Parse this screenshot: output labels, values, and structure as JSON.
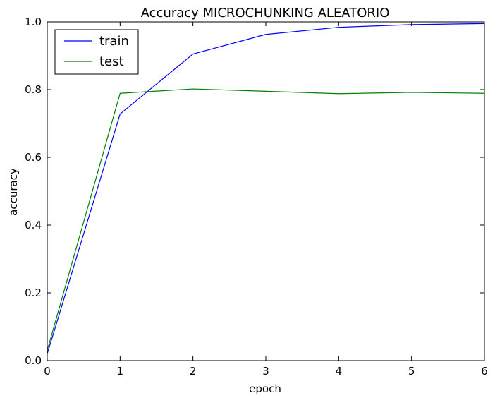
{
  "chart_data": {
    "type": "line",
    "title": "Accuracy MICROCHUNKING ALEATORIO",
    "xlabel": "epoch",
    "ylabel": "accuracy",
    "xlim": [
      0,
      6
    ],
    "ylim": [
      0.0,
      1.0
    ],
    "x_ticks": [
      "0",
      "1",
      "2",
      "3",
      "4",
      "5",
      "6"
    ],
    "y_ticks": [
      "0.0",
      "0.2",
      "0.4",
      "0.6",
      "0.8",
      "1.0"
    ],
    "grid": false,
    "legend_position": "top-left",
    "x": [
      0,
      1,
      2,
      3,
      4,
      5,
      6
    ],
    "series": [
      {
        "name": "train",
        "color": "#0000ff",
        "values": [
          0.02,
          0.728,
          0.905,
          0.963,
          0.984,
          0.992,
          0.995
        ]
      },
      {
        "name": "test",
        "color": "#008000",
        "values": [
          0.03,
          0.789,
          0.802,
          0.795,
          0.788,
          0.792,
          0.789
        ]
      }
    ]
  }
}
